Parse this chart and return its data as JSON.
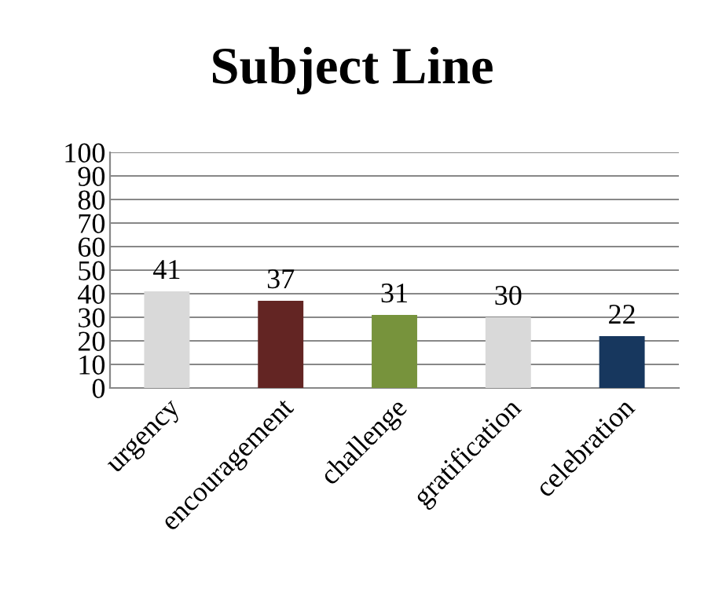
{
  "chart_data": {
    "type": "bar",
    "title": "Subject Line",
    "categories": [
      "urgency",
      "encouragement",
      "challenge",
      "gratification",
      "celebration"
    ],
    "values": [
      41,
      37,
      31,
      30,
      22
    ],
    "colors": [
      "#d9d9d9",
      "#632523",
      "#77933c",
      "#d9d9d9",
      "#17375e"
    ],
    "ylim": [
      0,
      100
    ],
    "yticks": [
      0,
      10,
      20,
      30,
      40,
      50,
      60,
      70,
      80,
      90,
      100
    ],
    "grid": "y",
    "data_labels": true
  }
}
